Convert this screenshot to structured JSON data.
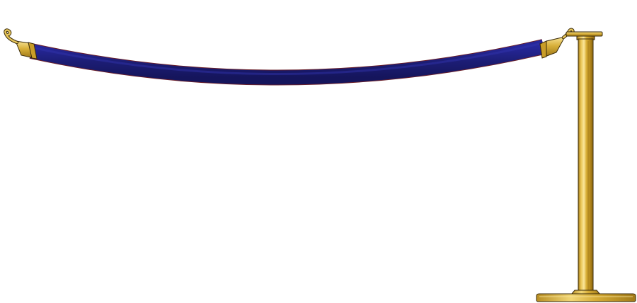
{
  "scene": {
    "background": "#ffffff",
    "colors": {
      "rope": "#1e1f78",
      "rope_dark": "#14145a",
      "rope_edge": "#6a1f2a",
      "brass_light": "#f6e08a",
      "brass_mid": "#d9b23a",
      "brass_dark": "#9a7414",
      "outline": "#3a2a08"
    },
    "icons": {
      "rope": "velvet-rope-icon",
      "left_end": "rope-end-hook-icon",
      "right_end": "rope-end-hook-icon",
      "post": "stanchion-post-icon",
      "base": "stanchion-base-icon",
      "cap": "stanchion-cap-icon"
    }
  }
}
